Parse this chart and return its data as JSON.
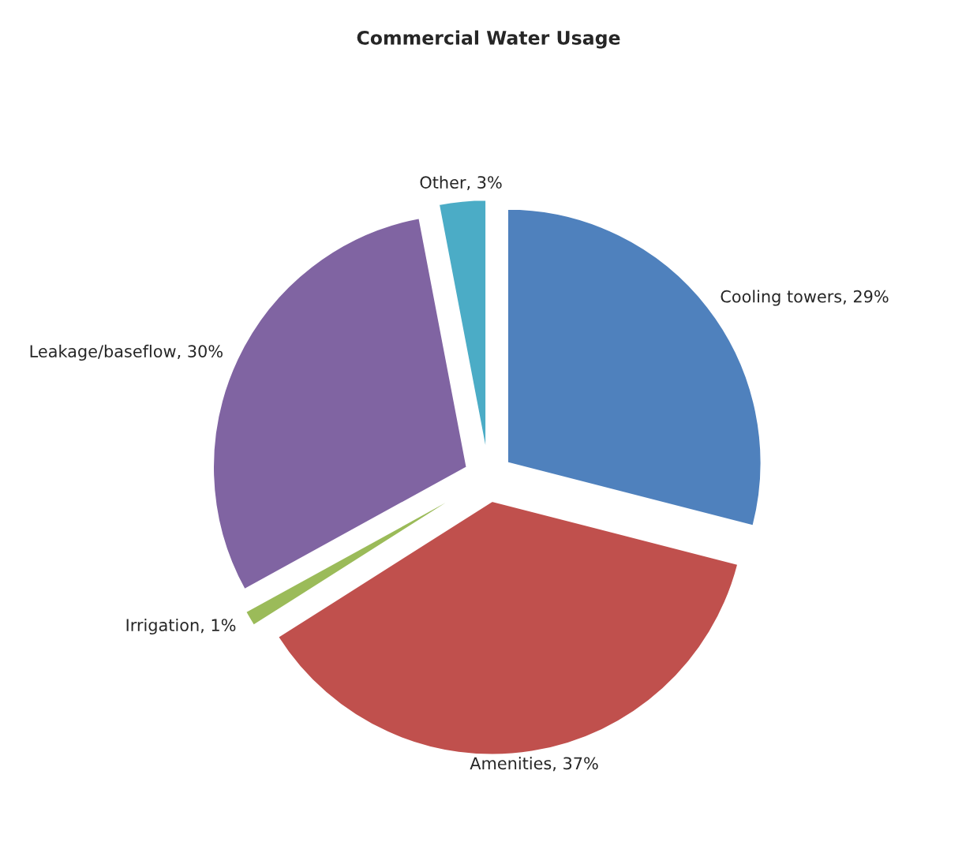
{
  "chart_data": {
    "type": "pie",
    "title": "Commercial Water Usage",
    "categories": [
      "Cooling towers",
      "Amenities",
      "Irrigation",
      "Leakage/baseflow",
      "Other"
    ],
    "values": [
      29,
      37,
      1,
      30,
      3
    ],
    "value_labels": [
      "29%",
      "37%",
      "1%",
      "30%",
      "3%"
    ],
    "colors": [
      "#4f81bd",
      "#c0504d",
      "#9bbb59",
      "#8064a2",
      "#4bacc6"
    ],
    "legend": false
  }
}
